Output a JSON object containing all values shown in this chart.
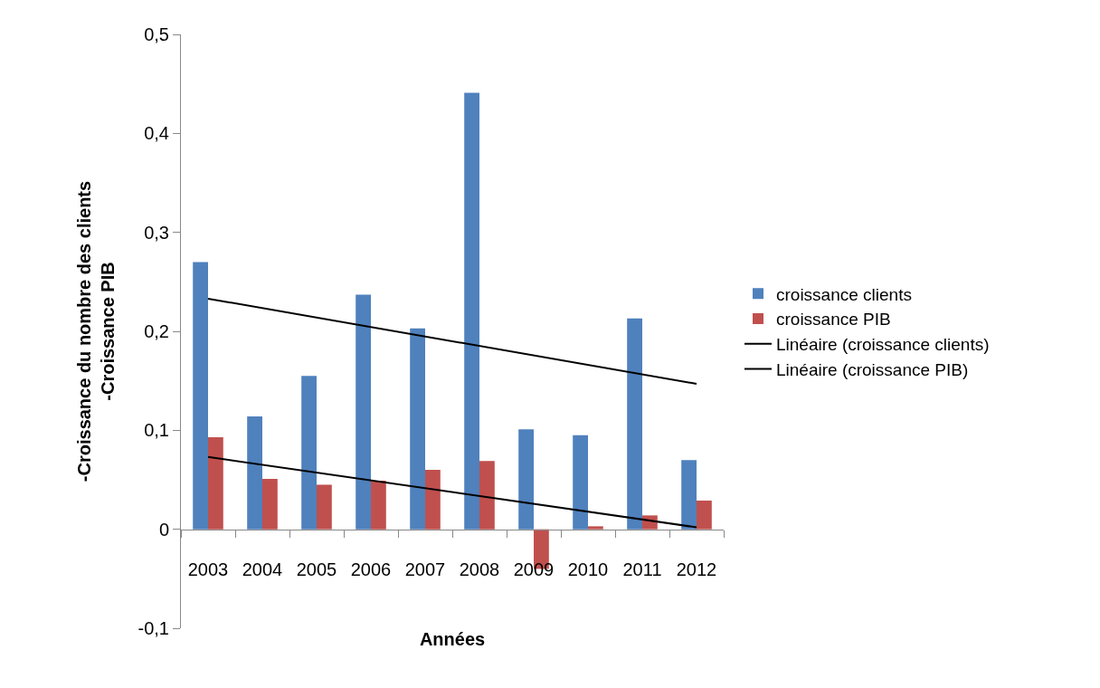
{
  "chart_data": {
    "type": "bar",
    "xlabel": "Années",
    "ylabel": "-Croissance du nombre des clients\n-Croissance PIB",
    "categories": [
      "2003",
      "2004",
      "2005",
      "2006",
      "2007",
      "2008",
      "2009",
      "2010",
      "2011",
      "2012"
    ],
    "series": [
      {
        "name": "croissance clients",
        "color": "#4f81bd",
        "values": [
          0.27,
          0.114,
          0.155,
          0.237,
          0.203,
          0.441,
          0.101,
          0.095,
          0.213,
          0.07
        ]
      },
      {
        "name": "croissance PIB",
        "color": "#c0504d",
        "values": [
          0.093,
          0.051,
          0.045,
          0.049,
          0.06,
          0.069,
          -0.04,
          0.003,
          0.014,
          0.029
        ]
      },
      {
        "name": "Linéaire (croissance clients)",
        "type": "line",
        "color": "#000000",
        "values": [
          0.233,
          null,
          null,
          null,
          null,
          null,
          null,
          null,
          null,
          0.147
        ]
      },
      {
        "name": "Linéaire (croissance PIB)",
        "type": "line",
        "color": "#000000",
        "values": [
          0.073,
          null,
          null,
          null,
          null,
          null,
          null,
          null,
          null,
          0.002
        ]
      }
    ],
    "ylim": [
      -0.1,
      0.5
    ],
    "yticks": [
      {
        "value": -0.1,
        "label": "-0,1"
      },
      0,
      {
        "value": 0.1,
        "label": "0,1"
      },
      {
        "value": 0.2,
        "label": "0,2"
      },
      {
        "value": 0.3,
        "label": "0,3"
      },
      {
        "value": 0.4,
        "label": "0,4"
      },
      {
        "value": 0.5,
        "label": "0,5"
      }
    ],
    "grid": false,
    "legend": "right"
  }
}
